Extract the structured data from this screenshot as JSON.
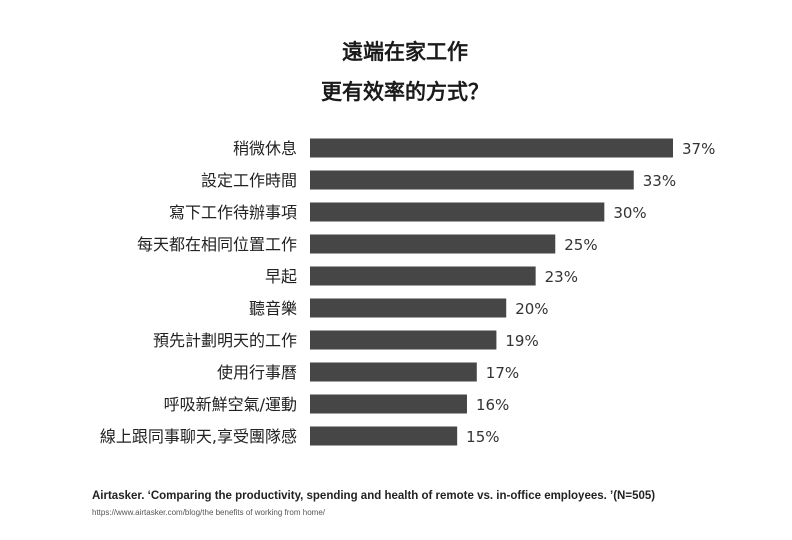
{
  "chart_data": {
    "type": "bar",
    "orientation": "horizontal",
    "title": [
      "遠端在家工作",
      "更有效率的方式？"
    ],
    "categories": [
      "稍微休息",
      "設定工作時間",
      "寫下工作待辦事項",
      "每天都在相同位置工作",
      "早起",
      "聽音樂",
      "預先計劃明天的工作",
      "使用行事曆",
      "呼吸新鮮空氣/運動",
      "線上跟同事聊天,享受團隊感"
    ],
    "values": [
      37,
      33,
      30,
      25,
      23,
      20,
      19,
      17,
      16,
      15
    ],
    "data_labels": [
      "37%",
      "33%",
      "30%",
      "25%",
      "23%",
      "20%",
      "19%",
      "17%",
      "16%",
      "15%"
    ],
    "unit": "%",
    "xlim": [
      0,
      37
    ],
    "grid": false,
    "bar_color": "#464646"
  },
  "source": {
    "citation": "Airtasker. ‘Comparing the productivity, spending and health of remote vs. in-office employees. ’(N=505)",
    "url": "https://www.airtasker.com/blog/the benefits of working from home/"
  }
}
